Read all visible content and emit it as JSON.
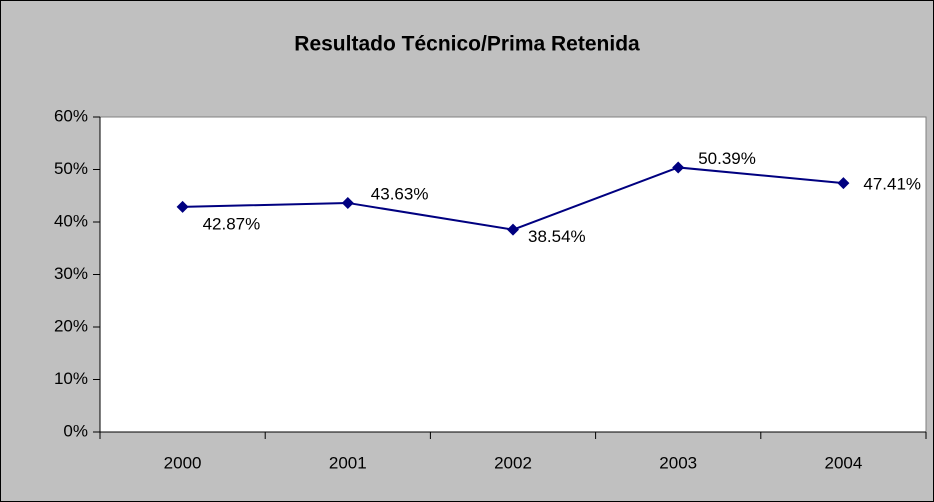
{
  "chart_data": {
    "type": "line",
    "title": "Resultado Técnico/Prima Retenida",
    "categories": [
      "2000",
      "2001",
      "2002",
      "2003",
      "2004"
    ],
    "series": [
      {
        "name": "Resultado Técnico/Prima Retenida",
        "color": "#000080",
        "values": [
          42.87,
          43.63,
          38.54,
          50.39,
          47.41
        ],
        "value_labels": [
          "42.87%",
          "43.63%",
          "38.54%",
          "50.39%",
          "47.41%"
        ]
      }
    ],
    "ylim": [
      0,
      60
    ],
    "yticks": [
      {
        "value": 0,
        "label": "0%"
      },
      {
        "value": 10,
        "label": "10%"
      },
      {
        "value": 20,
        "label": "20%"
      },
      {
        "value": 30,
        "label": "30%"
      },
      {
        "value": 40,
        "label": "40%"
      },
      {
        "value": 50,
        "label": "50%"
      },
      {
        "value": 60,
        "label": "60%"
      }
    ]
  }
}
